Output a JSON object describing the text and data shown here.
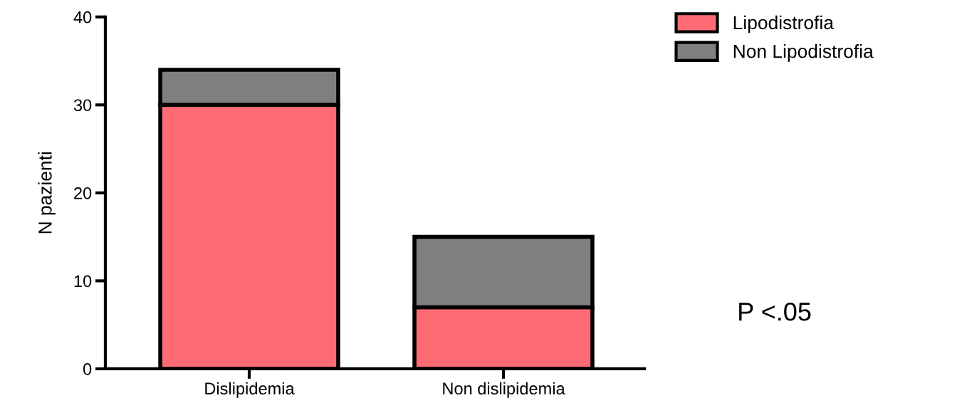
{
  "chart_data": {
    "type": "bar",
    "stacked": true,
    "ylabel": "N pazienti",
    "categories": [
      "Dislipidemia",
      "Non dislipidemia"
    ],
    "series": [
      {
        "name": "Lipodistrofia",
        "color": "#ff6b74",
        "values": [
          30,
          7
        ]
      },
      {
        "name": "Non Lipodistrofia",
        "color": "#7f7f7f",
        "values": [
          4,
          8
        ]
      }
    ],
    "ylim": [
      0,
      40
    ],
    "yticks": [
      0,
      10,
      20,
      30,
      40
    ],
    "grid": false,
    "legend": "top right",
    "annotations": [
      {
        "text": "P <.05"
      }
    ]
  }
}
